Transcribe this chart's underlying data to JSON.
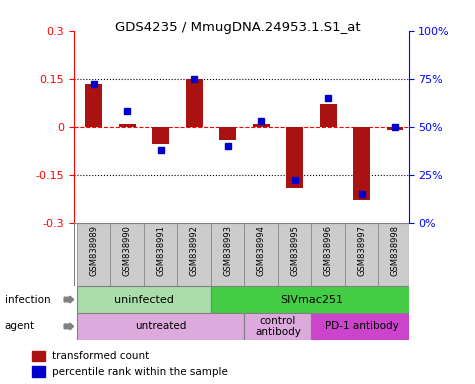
{
  "title": "GDS4235 / MmugDNA.24953.1.S1_at",
  "samples": [
    "GSM838989",
    "GSM838990",
    "GSM838991",
    "GSM838992",
    "GSM838993",
    "GSM838994",
    "GSM838995",
    "GSM838996",
    "GSM838997",
    "GSM838998"
  ],
  "bar_values": [
    0.135,
    0.01,
    -0.055,
    0.15,
    -0.04,
    0.01,
    -0.19,
    0.07,
    -0.23,
    -0.01
  ],
  "dot_values": [
    72,
    58,
    38,
    75,
    40,
    53,
    22,
    65,
    15,
    50
  ],
  "bar_color": "#aa1111",
  "dot_color": "#0000cc",
  "ylim_left": [
    -0.3,
    0.3
  ],
  "ylim_right": [
    0,
    100
  ],
  "yticks_left": [
    -0.3,
    -0.15,
    0.0,
    0.15,
    0.3
  ],
  "ytick_labels_left": [
    "-0.3",
    "-0.15",
    "0",
    "0.15",
    "0.3"
  ],
  "yticks_right": [
    0,
    25,
    50,
    75,
    100
  ],
  "ytick_labels_right": [
    "0%",
    "25%",
    "50%",
    "75%",
    "100%"
  ],
  "infection_regions": [
    {
      "text": "uninfected",
      "x_start": -0.5,
      "x_end": 3.5,
      "color": "#aaddaa"
    },
    {
      "text": "SIVmac251",
      "x_start": 3.5,
      "x_end": 9.5,
      "color": "#44cc44"
    }
  ],
  "agent_regions": [
    {
      "text": "untreated",
      "x_start": -0.5,
      "x_end": 4.5,
      "color": "#ddaadd"
    },
    {
      "text": "control\nantibody",
      "x_start": 4.5,
      "x_end": 6.5,
      "color": "#ddaadd"
    },
    {
      "text": "PD-1 antibody",
      "x_start": 6.5,
      "x_end": 9.5,
      "color": "#cc44cc"
    }
  ],
  "infection_row_label": "infection",
  "agent_row_label": "agent",
  "legend_items": [
    {
      "color": "#aa1111",
      "label": "transformed count"
    },
    {
      "color": "#0000cc",
      "label": "percentile rank within the sample"
    }
  ],
  "background_color": "#ffffff",
  "bar_width": 0.5,
  "xlim": [
    -0.6,
    9.4
  ]
}
